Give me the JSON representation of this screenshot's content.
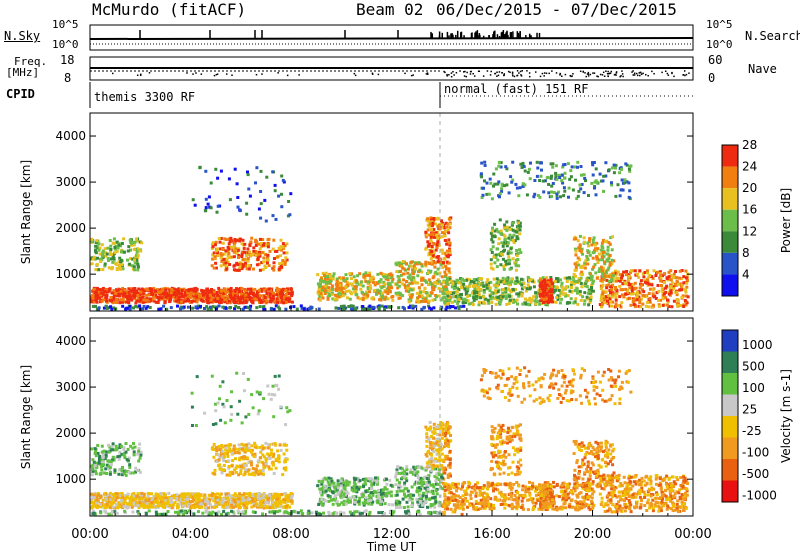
{
  "header": {
    "station": "McMurdo (fitACF)",
    "beam": "Beam 02",
    "date_range": "06/Dec/2015 - 07/Dec/2015"
  },
  "top_panels": {
    "nsky_label": "N.Sky",
    "nsky_ticks": [
      "10^5",
      "10^0"
    ],
    "nsearch_label": "N.Search",
    "nsearch_ticks": [
      "10^5",
      "10^0"
    ],
    "freq_label": [
      "Freq.",
      "[MHz]"
    ],
    "freq_ticks": [
      "18",
      "8"
    ],
    "nave_label": "Nave",
    "nave_ticks": [
      "60",
      "0"
    ],
    "cpid_label": "CPID",
    "cpid_segments": [
      "themis 3300 RF",
      "normal (fast) 151 RF"
    ]
  },
  "chart_data": [
    {
      "type": "heatmap",
      "ylabel": "Slant Range [km]",
      "yticks": [
        "1000",
        "2000",
        "3000",
        "4000"
      ],
      "ylim": [
        200,
        4500
      ],
      "colorbar_label": "Power [dB]",
      "colorbar_ticks": [
        "4",
        "8",
        "12",
        "16",
        "20",
        "24",
        "28"
      ],
      "colors": [
        "#1010ee",
        "#2854c8",
        "#3a8a3a",
        "#6cbe4a",
        "#e8c020",
        "#f07f10",
        "#ee2b10"
      ]
    },
    {
      "type": "heatmap",
      "ylabel": "Slant Range [km]",
      "yticks": [
        "1000",
        "2000",
        "3000",
        "4000"
      ],
      "ylim": [
        200,
        4500
      ],
      "xlabel": "Time UT",
      "xticks": [
        "00:00",
        "04:00",
        "08:00",
        "12:00",
        "16:00",
        "20:00",
        "00:00"
      ],
      "colorbar_label": "Velocity [m s-1]",
      "colorbar_ticks": [
        "1000",
        "500",
        "100",
        "25",
        "-25",
        "-100",
        "-500",
        "-1000"
      ],
      "colors": [
        "#1f3ec0",
        "#2e7f55",
        "#62c040",
        "#c8c8c8",
        "#f0c000",
        "#f09a20",
        "#e86010",
        "#e81010"
      ]
    }
  ]
}
